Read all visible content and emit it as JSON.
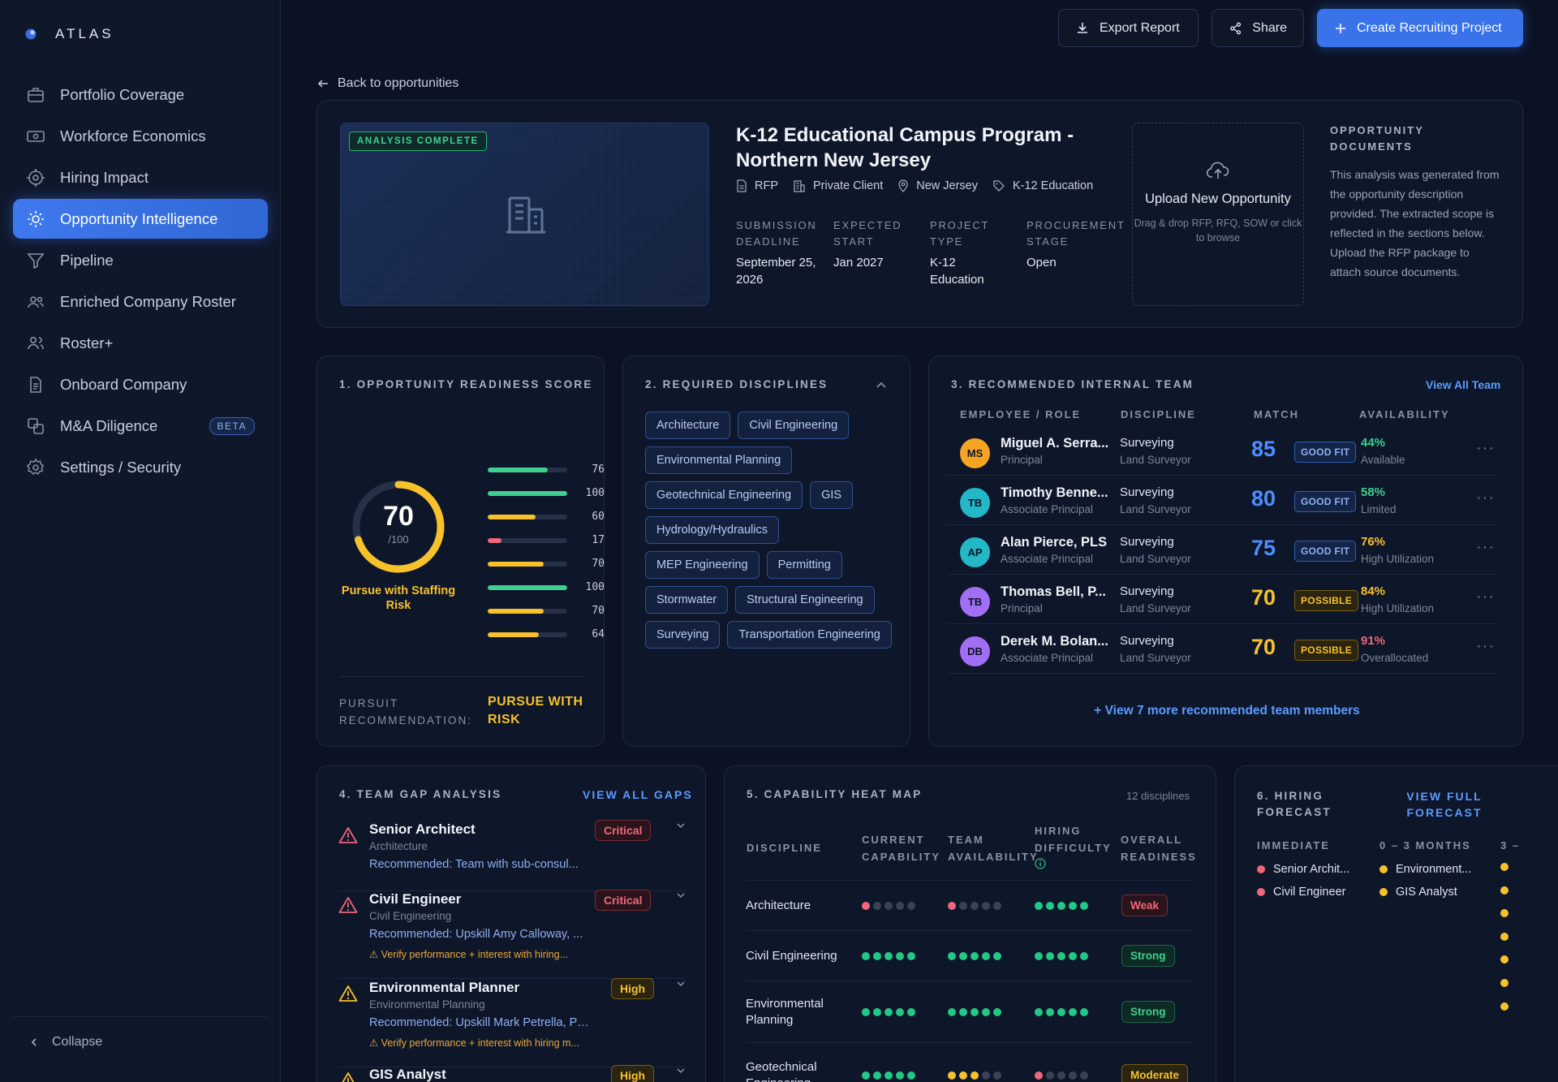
{
  "app": {
    "brand": "ATLAS"
  },
  "sidebar": {
    "items": [
      {
        "label": "Portfolio Coverage",
        "icon": "briefcase-icon"
      },
      {
        "label": "Workforce Economics",
        "icon": "banknote-icon"
      },
      {
        "label": "Hiring Impact",
        "icon": "target-icon"
      },
      {
        "label": "Opportunity Intelligence",
        "icon": "sun-icon",
        "active": true
      },
      {
        "label": "Pipeline",
        "icon": "filter-icon"
      },
      {
        "label": "Enriched Company Roster",
        "icon": "users-icon"
      },
      {
        "label": "Roster+",
        "icon": "users-plus-icon"
      },
      {
        "label": "Onboard Company",
        "icon": "document-icon"
      },
      {
        "label": "M&A Diligence",
        "icon": "merge-icon",
        "badge": "BETA"
      },
      {
        "label": "Settings / Security",
        "icon": "gear-icon"
      }
    ],
    "collapse_label": "Collapse"
  },
  "header": {
    "export_label": "Export Report",
    "share_label": "Share",
    "create_label": "Create Recruiting Project"
  },
  "back_label": "Back to opportunities",
  "opportunity": {
    "status_badge": "ANALYSIS COMPLETE",
    "title": "K-12 Educational Campus Program - Northern New Jersey",
    "tags": [
      "RFP",
      "Private Client",
      "New Jersey",
      "K-12 Education"
    ],
    "meta": [
      {
        "label": "SUBMISSION DEADLINE",
        "value": "September 25, 2026"
      },
      {
        "label": "EXPECTED START",
        "value": "Jan 2027"
      },
      {
        "label": "PROJECT TYPE",
        "value": "K-12 Education"
      },
      {
        "label": "PROCUREMENT STAGE",
        "value": "Open"
      }
    ],
    "upload_title": "Upload New Opportunity",
    "upload_hint": "Drag & drop RFP, RFQ, SOW or click to browse",
    "docs_title": "OPPORTUNITY DOCUMENTS",
    "docs_text": "This analysis was generated from the opportunity description provided. The extracted scope is reflected in the sections below. Upload the RFP package to attach source documents."
  },
  "readiness": {
    "title": "1. OPPORTUNITY READINESS SCORE",
    "score": 70,
    "score_max": "/100",
    "score_label": "Pursue with Staffing Risk",
    "bars": [
      {
        "value": 76,
        "color": "#3fd08f"
      },
      {
        "value": 100,
        "color": "#3fd08f"
      },
      {
        "value": 60,
        "color": "#f6c12b"
      },
      {
        "value": 17,
        "color": "#f0677a"
      },
      {
        "value": 70,
        "color": "#f6c12b"
      },
      {
        "value": 100,
        "color": "#3fd08f"
      },
      {
        "value": 70,
        "color": "#f6c12b"
      },
      {
        "value": 64,
        "color": "#f6c12b"
      }
    ],
    "pursuit_label": "PURSUIT RECOMMENDATION:",
    "pursuit_value": "PURSUE WITH RISK"
  },
  "disciplines": {
    "title": "2. REQUIRED DISCIPLINES",
    "items": [
      "Architecture",
      "Civil Engineering",
      "Environmental Planning",
      "Geotechnical Engineering",
      "GIS",
      "Hydrology/Hydraulics",
      "MEP Engineering",
      "Permitting",
      "Stormwater",
      "Structural Engineering",
      "Surveying",
      "Transportation Engineering"
    ]
  },
  "team": {
    "title": "3. RECOMMENDED INTERNAL TEAM",
    "view_all": "View All Team",
    "headers": [
      "EMPLOYEE / ROLE",
      "DISCIPLINE",
      "MATCH",
      "AVAILABILITY"
    ],
    "rows": [
      {
        "initials": "MS",
        "avatar_color": "#f5a524",
        "name": "Miguel A. Serra...",
        "role": "Principal",
        "discipline": "Surveying",
        "subdiscipline": "Land Surveyor",
        "score": "85",
        "fit": "GOOD FIT",
        "pct": "44%",
        "pct_color": "#3fd08f",
        "availability": "Available"
      },
      {
        "initials": "TB",
        "avatar_color": "#22b8c7",
        "name": "Timothy Benne...",
        "role": "Associate Principal",
        "discipline": "Surveying",
        "subdiscipline": "Land Surveyor",
        "score": "80",
        "fit": "GOOD FIT",
        "pct": "58%",
        "pct_color": "#3fd08f",
        "availability": "Limited"
      },
      {
        "initials": "AP",
        "avatar_color": "#22b8c7",
        "name": "Alan Pierce, PLS",
        "role": "Associate Principal",
        "discipline": "Surveying",
        "subdiscipline": "Land Surveyor",
        "score": "75",
        "fit": "GOOD FIT",
        "pct": "76%",
        "pct_color": "#f6c12b",
        "availability": "High Utilization"
      },
      {
        "initials": "TB",
        "avatar_color": "#a16ef5",
        "name": "Thomas Bell, P...",
        "role": "Principal",
        "discipline": "Surveying",
        "subdiscipline": "Land Surveyor",
        "score": "70",
        "fit": "POSSIBLE",
        "pct": "84%",
        "pct_color": "#f6c12b",
        "availability": "High Utilization"
      },
      {
        "initials": "DB",
        "avatar_color": "#a16ef5",
        "name": "Derek M. Bolan...",
        "role": "Associate Principal",
        "discipline": "Surveying",
        "subdiscipline": "Land Surveyor",
        "score": "70",
        "fit": "POSSIBLE",
        "pct": "91%",
        "pct_color": "#f0677a",
        "availability": "Overallocated"
      }
    ],
    "more": "+ View 7 more recommended team members"
  },
  "gaps": {
    "title": "4. TEAM GAP ANALYSIS",
    "view_all": "VIEW ALL GAPS",
    "items": [
      {
        "title": "Senior Architect",
        "sub": "Architecture",
        "rec": "Recommended: Team with sub-consul...",
        "warn": "",
        "severity": "Critical"
      },
      {
        "title": "Civil Engineer",
        "sub": "Civil Engineering",
        "rec": "Recommended: Upskill Amy Calloway, ...",
        "warn": "⚠ Verify performance + interest with hiring...",
        "severity": "Critical"
      },
      {
        "title": "Environmental Planner",
        "sub": "Environmental Planning",
        "rec": "Recommended: Upskill Mark Petrella, PG,...",
        "warn": "⚠ Verify performance + interest with hiring m...",
        "severity": "High"
      },
      {
        "title": "GIS Analyst",
        "sub": "",
        "rec": "",
        "warn": "",
        "severity": "High"
      }
    ]
  },
  "heatmap": {
    "title": "5. CAPABILITY HEAT MAP",
    "count": "12 disciplines",
    "headers": [
      "DISCIPLINE",
      "CURRENT CAPABILITY",
      "TEAM AVAILABILITY",
      "HIRING DIFFICULTY",
      "OVERALL READINESS"
    ],
    "rows": [
      {
        "name": "Architecture",
        "current": [
          1,
          0,
          0,
          0,
          0
        ],
        "current_color": "#f0677a",
        "team": [
          1,
          0,
          0,
          0,
          0
        ],
        "team_color": "#f0677a",
        "hiring": [
          1,
          1,
          1,
          1,
          1
        ],
        "hiring_color": "#22c986",
        "readiness": "Weak"
      },
      {
        "name": "Civil Engineering",
        "current": [
          1,
          1,
          1,
          1,
          1
        ],
        "current_color": "#22c986",
        "team": [
          1,
          1,
          1,
          1,
          1
        ],
        "team_color": "#22c986",
        "hiring": [
          1,
          1,
          1,
          1,
          1
        ],
        "hiring_color": "#22c986",
        "readiness": "Strong"
      },
      {
        "name": "Environmental Planning",
        "current": [
          1,
          1,
          1,
          1,
          1
        ],
        "current_color": "#22c986",
        "team": [
          1,
          1,
          1,
          1,
          1
        ],
        "team_color": "#22c986",
        "hiring": [
          1,
          1,
          1,
          1,
          1
        ],
        "hiring_color": "#22c986",
        "readiness": "Strong"
      },
      {
        "name": "Geotechnical Engineering",
        "current": [
          1,
          1,
          1,
          1,
          1
        ],
        "current_color": "#22c986",
        "team": [
          1,
          1,
          1,
          0,
          0
        ],
        "team_color": "#f6c12b",
        "hiring": [
          1,
          0,
          0,
          0,
          0
        ],
        "hiring_color": "#f0677a",
        "readiness": "Moderate"
      }
    ]
  },
  "forecast": {
    "title": "6. HIRING FORECAST",
    "view_full": "VIEW FULL FORECAST",
    "columns": [
      {
        "label": "IMMEDIATE",
        "color": "#f0677a",
        "items": [
          "Senior Archit...",
          "Civil Engineer"
        ]
      },
      {
        "label": "0 – 3 MONTHS",
        "color": "#f6c12b",
        "items": [
          "Environment...",
          "GIS Analyst"
        ]
      },
      {
        "label": "3 –",
        "color": "#f6c12b",
        "items": [
          "",
          "",
          "",
          "",
          "",
          "",
          ""
        ]
      }
    ]
  }
}
